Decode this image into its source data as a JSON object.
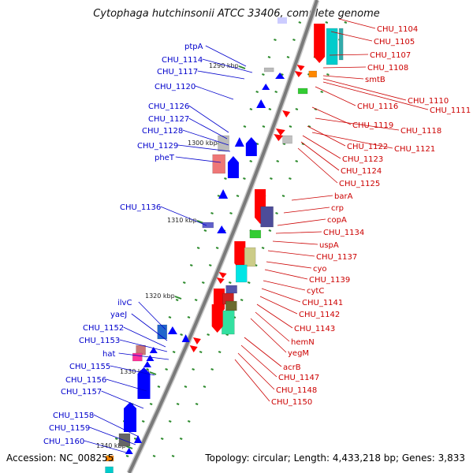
{
  "title": "Cytophaga hutchinsonii ATCC 33406, complete genome",
  "accession": "Accession: NC_008255",
  "topology": "Topology: circular; Length: 4,433,218 bp; Genes: 3,833",
  "colors": {
    "backbone": "#808080",
    "left_labels": "#0000cc",
    "right_labels": "#cc0000",
    "tick": "#2e8b2e"
  },
  "kbp_marks": [
    "1290 kbp",
    "1300 kbp",
    "1310 kbp",
    "1320 kbp",
    "1330 kbp",
    "1340 kbp"
  ],
  "left_labels": [
    "ptpA",
    "CHU_1114",
    "CHU_1117",
    "CHU_1120",
    "CHU_1126",
    "CHU_1127",
    "CHU_1128",
    "CHU_1129",
    "pheT",
    "CHU_1136",
    "ilvC",
    "yaeJ",
    "CHU_1152",
    "CHU_1153",
    "hat",
    "CHU_1155",
    "CHU_1156",
    "CHU_1157",
    "CHU_1158",
    "CHU_1159",
    "CHU_1160"
  ],
  "right_labels": [
    "CHU_1104",
    "CHU_1105",
    "CHU_1107",
    "CHU_1108",
    "smtB",
    "CHU_1110",
    "CHU_1111",
    "CHU_1116",
    "CHU_1119",
    "CHU_1118",
    "CHU_1122",
    "CHU_1121",
    "CHU_1123",
    "CHU_1124",
    "CHU_1125",
    "barA",
    "crp",
    "copA",
    "CHU_1134",
    "uspA",
    "CHU_1137",
    "cyo",
    "CHU_1139",
    "cytC",
    "CHU_1141",
    "CHU_1142",
    "CHU_1143",
    "hemN",
    "yegM",
    "acrB",
    "CHU_1147",
    "CHU_1148",
    "CHU_1150"
  ]
}
